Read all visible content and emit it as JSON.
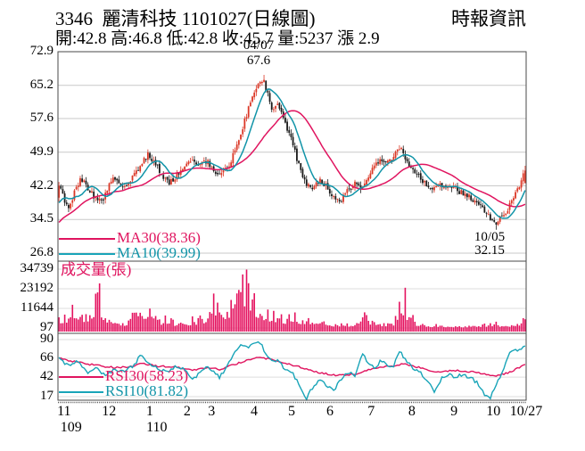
{
  "header": {
    "title": "3346  麗清科技 1101027(日線圖)",
    "source": "時報資訊",
    "quote_line": "開:42.8 高:46.8 低:42.8 收:45.7 量:5237 漲 2.9"
  },
  "colors": {
    "candle_up": "#db3726",
    "candle_down": "#1a1a1a",
    "ma30": "#e0145f",
    "ma10": "#1194a8",
    "rsi30": "#e0145f",
    "rsi10": "#18a4b8",
    "volume": "#e4125f",
    "grid_main": "#c9c9c9",
    "grid_sub": "#dedede",
    "panel_border": "#4a4a4a"
  },
  "chart_data": {
    "type": "candlestick",
    "panels": [
      "price+MA",
      "volume",
      "RSI"
    ],
    "days": 242,
    "price_axis": {
      "ticks": [
        72.9,
        65.2,
        57.6,
        49.9,
        42.2,
        34.5,
        26.8
      ],
      "range": [
        26.8,
        72.9
      ]
    },
    "volume_axis": {
      "ticks": [
        34739,
        23192,
        11644,
        97
      ],
      "range": [
        97,
        34739
      ]
    },
    "rsi_axis": {
      "ticks": [
        90,
        66,
        42,
        17
      ],
      "range": [
        17,
        90
      ]
    },
    "x_axis": {
      "months": [
        {
          "label": "11",
          "t": 0.013
        },
        {
          "label": "12",
          "t": 0.109
        },
        {
          "label": "1",
          "t": 0.196
        },
        {
          "label": "2",
          "t": 0.276
        },
        {
          "label": "3",
          "t": 0.328
        },
        {
          "label": "4",
          "t": 0.419
        },
        {
          "label": "5",
          "t": 0.499
        },
        {
          "label": "6",
          "t": 0.581
        },
        {
          "label": "7",
          "t": 0.669
        },
        {
          "label": "8",
          "t": 0.756
        },
        {
          "label": "9",
          "t": 0.846
        },
        {
          "label": "10",
          "t": 0.93
        },
        {
          "label": "10/27",
          "t": 1.0
        }
      ],
      "years": [
        {
          "label": "109",
          "t": 0.028
        },
        {
          "label": "110",
          "t": 0.211
        }
      ]
    },
    "legend": {
      "ma30": "MA30(38.36)",
      "ma10": "MA10(39.99)",
      "volume_title": "成交量(張)",
      "rsi30": "RSI30(58.23)",
      "rsi10": "RSI10(81.82)"
    },
    "annotations": {
      "peak": {
        "date": "04/07",
        "price": "67.6",
        "t": 0.438
      },
      "trough": {
        "date": "10/05",
        "price": "32.15",
        "t": 0.936
      }
    },
    "last_bar": {
      "open": 42.8,
      "high": 46.8,
      "low": 42.8,
      "close": 45.7,
      "volume": 5237,
      "change": 2.9
    },
    "series_anchors": {
      "price": [
        [
          0,
          42.3
        ],
        [
          0.012,
          39
        ],
        [
          0.022,
          37.2
        ],
        [
          0.036,
          41.5
        ],
        [
          0.048,
          44
        ],
        [
          0.062,
          41.5
        ],
        [
          0.078,
          39.5
        ],
        [
          0.092,
          38.5
        ],
        [
          0.105,
          41.5
        ],
        [
          0.118,
          44.5
        ],
        [
          0.13,
          42.5
        ],
        [
          0.145,
          41.8
        ],
        [
          0.16,
          44.5
        ],
        [
          0.175,
          47
        ],
        [
          0.19,
          49.5
        ],
        [
          0.205,
          47.5
        ],
        [
          0.22,
          45
        ],
        [
          0.235,
          42.8
        ],
        [
          0.252,
          44.5
        ],
        [
          0.268,
          46.5
        ],
        [
          0.282,
          48
        ],
        [
          0.296,
          46.8
        ],
        [
          0.31,
          48.3
        ],
        [
          0.325,
          47
        ],
        [
          0.34,
          44.3
        ],
        [
          0.355,
          45.5
        ],
        [
          0.368,
          47.5
        ],
        [
          0.382,
          51.5
        ],
        [
          0.395,
          56
        ],
        [
          0.408,
          60.5
        ],
        [
          0.42,
          63.5
        ],
        [
          0.43,
          66
        ],
        [
          0.438,
          66.5
        ],
        [
          0.448,
          63
        ],
        [
          0.458,
          59
        ],
        [
          0.47,
          61
        ],
        [
          0.483,
          57
        ],
        [
          0.499,
          53
        ],
        [
          0.513,
          47.5
        ],
        [
          0.528,
          43
        ],
        [
          0.543,
          41.2
        ],
        [
          0.558,
          43.5
        ],
        [
          0.572,
          42.3
        ],
        [
          0.588,
          39.8
        ],
        [
          0.603,
          38.8
        ],
        [
          0.618,
          41
        ],
        [
          0.633,
          42.8
        ],
        [
          0.648,
          41.8
        ],
        [
          0.663,
          44
        ],
        [
          0.678,
          46.8
        ],
        [
          0.692,
          48.5
        ],
        [
          0.705,
          47.3
        ],
        [
          0.718,
          49.3
        ],
        [
          0.731,
          51
        ],
        [
          0.744,
          48.3
        ],
        [
          0.758,
          45.8
        ],
        [
          0.772,
          44.3
        ],
        [
          0.786,
          42.8
        ],
        [
          0.8,
          41.8
        ],
        [
          0.814,
          42.8
        ],
        [
          0.828,
          41.4
        ],
        [
          0.842,
          42.2
        ],
        [
          0.856,
          41
        ],
        [
          0.87,
          40.2
        ],
        [
          0.884,
          39.3
        ],
        [
          0.898,
          38.2
        ],
        [
          0.912,
          36.8
        ],
        [
          0.924,
          35.2
        ],
        [
          0.936,
          33.4
        ],
        [
          0.946,
          34.6
        ],
        [
          0.956,
          36
        ],
        [
          0.966,
          37.6
        ],
        [
          0.976,
          39.6
        ],
        [
          0.986,
          41.8
        ],
        [
          1,
          45.7
        ]
      ],
      "volume": [
        [
          0,
          5000
        ],
        [
          0.02,
          8000
        ],
        [
          0.034,
          15000
        ],
        [
          0.05,
          10000
        ],
        [
          0.065,
          7000
        ],
        [
          0.086,
          23000
        ],
        [
          0.1,
          8000
        ],
        [
          0.12,
          4500
        ],
        [
          0.145,
          3500
        ],
        [
          0.166,
          22000
        ],
        [
          0.18,
          13000
        ],
        [
          0.2,
          8000
        ],
        [
          0.22,
          5000
        ],
        [
          0.25,
          3500
        ],
        [
          0.28,
          4500
        ],
        [
          0.31,
          5500
        ],
        [
          0.333,
          19000
        ],
        [
          0.355,
          8000
        ],
        [
          0.375,
          12000
        ],
        [
          0.396,
          34000
        ],
        [
          0.41,
          25000
        ],
        [
          0.425,
          17000
        ],
        [
          0.44,
          13000
        ],
        [
          0.455,
          8500
        ],
        [
          0.47,
          10000
        ],
        [
          0.485,
          7000
        ],
        [
          0.5,
          8500
        ],
        [
          0.52,
          6000
        ],
        [
          0.545,
          4500
        ],
        [
          0.57,
          3500
        ],
        [
          0.59,
          2500
        ],
        [
          0.615,
          2200
        ],
        [
          0.635,
          3000
        ],
        [
          0.651,
          12000
        ],
        [
          0.665,
          5000
        ],
        [
          0.685,
          3500
        ],
        [
          0.705,
          3000
        ],
        [
          0.72,
          4200
        ],
        [
          0.737,
          21000
        ],
        [
          0.752,
          6500
        ],
        [
          0.77,
          2800
        ],
        [
          0.8,
          1600
        ],
        [
          0.83,
          1300
        ],
        [
          0.86,
          1200
        ],
        [
          0.89,
          1400
        ],
        [
          0.915,
          2200
        ],
        [
          0.935,
          2800
        ],
        [
          0.955,
          1800
        ],
        [
          0.97,
          2400
        ],
        [
          0.985,
          3600
        ],
        [
          1,
          5237
        ]
      ],
      "rsi10": [
        [
          0,
          65
        ],
        [
          0.02,
          56
        ],
        [
          0.04,
          62
        ],
        [
          0.06,
          48
        ],
        [
          0.08,
          53
        ],
        [
          0.1,
          44
        ],
        [
          0.12,
          52
        ],
        [
          0.14,
          49
        ],
        [
          0.16,
          56
        ],
        [
          0.175,
          70
        ],
        [
          0.19,
          60
        ],
        [
          0.21,
          54
        ],
        [
          0.23,
          48
        ],
        [
          0.25,
          56
        ],
        [
          0.27,
          52
        ],
        [
          0.285,
          38
        ],
        [
          0.3,
          46
        ],
        [
          0.315,
          56
        ],
        [
          0.33,
          50
        ],
        [
          0.345,
          42
        ],
        [
          0.36,
          55
        ],
        [
          0.375,
          72
        ],
        [
          0.39,
          84
        ],
        [
          0.405,
          80
        ],
        [
          0.42,
          84
        ],
        [
          0.43,
          87
        ],
        [
          0.445,
          72
        ],
        [
          0.458,
          60
        ],
        [
          0.47,
          65
        ],
        [
          0.485,
          52
        ],
        [
          0.5,
          48
        ],
        [
          0.515,
          32
        ],
        [
          0.53,
          14
        ],
        [
          0.545,
          30
        ],
        [
          0.56,
          38
        ],
        [
          0.575,
          30
        ],
        [
          0.59,
          26
        ],
        [
          0.605,
          38
        ],
        [
          0.62,
          48
        ],
        [
          0.635,
          44
        ],
        [
          0.651,
          74
        ],
        [
          0.663,
          58
        ],
        [
          0.678,
          54
        ],
        [
          0.692,
          64
        ],
        [
          0.705,
          58
        ],
        [
          0.718,
          56
        ],
        [
          0.731,
          76
        ],
        [
          0.745,
          62
        ],
        [
          0.76,
          54
        ],
        [
          0.775,
          48
        ],
        [
          0.79,
          38
        ],
        [
          0.806,
          23
        ],
        [
          0.82,
          40
        ],
        [
          0.835,
          46
        ],
        [
          0.85,
          40
        ],
        [
          0.865,
          46
        ],
        [
          0.88,
          42
        ],
        [
          0.895,
          36
        ],
        [
          0.912,
          20
        ],
        [
          0.924,
          14
        ],
        [
          0.935,
          28
        ],
        [
          0.945,
          40
        ],
        [
          0.955,
          55
        ],
        [
          0.965,
          72
        ],
        [
          0.975,
          75
        ],
        [
          0.985,
          78
        ],
        [
          1,
          82
        ]
      ],
      "rsi30": [
        [
          0,
          66
        ],
        [
          0.04,
          61
        ],
        [
          0.08,
          57
        ],
        [
          0.12,
          54
        ],
        [
          0.16,
          56
        ],
        [
          0.175,
          60
        ],
        [
          0.21,
          56
        ],
        [
          0.25,
          55
        ],
        [
          0.285,
          51
        ],
        [
          0.315,
          54
        ],
        [
          0.345,
          52
        ],
        [
          0.375,
          58
        ],
        [
          0.4,
          63
        ],
        [
          0.43,
          67
        ],
        [
          0.455,
          65
        ],
        [
          0.485,
          60
        ],
        [
          0.515,
          55
        ],
        [
          0.545,
          49
        ],
        [
          0.575,
          46
        ],
        [
          0.605,
          44
        ],
        [
          0.635,
          46
        ],
        [
          0.665,
          52
        ],
        [
          0.692,
          55
        ],
        [
          0.718,
          56
        ],
        [
          0.737,
          59
        ],
        [
          0.76,
          56
        ],
        [
          0.79,
          52
        ],
        [
          0.806,
          48
        ],
        [
          0.835,
          50
        ],
        [
          0.865,
          50
        ],
        [
          0.895,
          48
        ],
        [
          0.92,
          45
        ],
        [
          0.94,
          44
        ],
        [
          0.96,
          47
        ],
        [
          0.98,
          52
        ],
        [
          1,
          58.2
        ]
      ]
    }
  }
}
